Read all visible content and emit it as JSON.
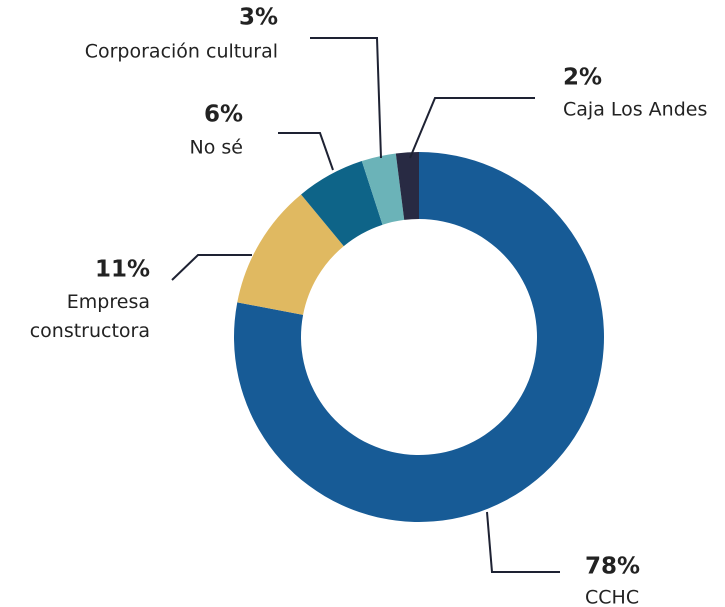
{
  "chart_data": {
    "type": "donut",
    "categories": [
      "CCHC",
      "Empresa constructora",
      "No sé",
      "Corporación cultural",
      "Caja Los Andes"
    ],
    "values": [
      78,
      11,
      6,
      3,
      2
    ],
    "value_labels": [
      "78%",
      "11%",
      "6%",
      "3%",
      "2%"
    ],
    "colors": [
      "#175b96",
      "#e0b961",
      "#0e6488",
      "#6bb3b8",
      "#282a43"
    ]
  }
}
